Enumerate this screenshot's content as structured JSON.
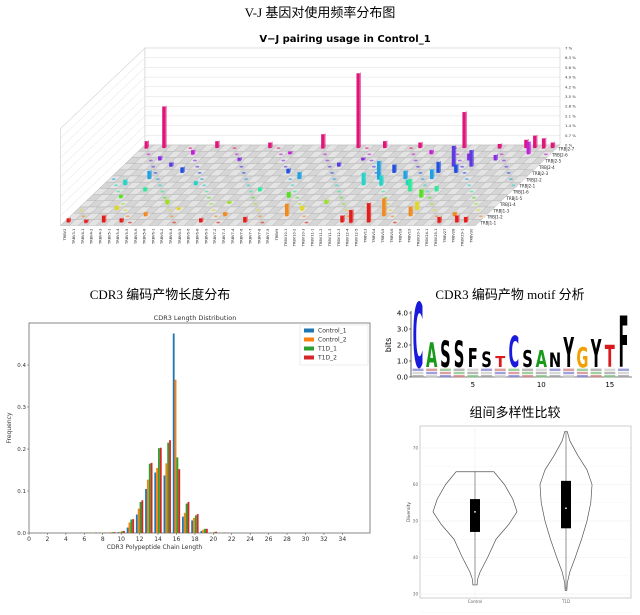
{
  "headings": {
    "vj": "V-J 基因对使用频率分布图",
    "length": "CDR3 编码产物长度分布",
    "motif": "CDR3 编码产物 motif 分析",
    "diversity": "组间多样性比较"
  },
  "chart_data": [
    {
      "type": "bar3d",
      "title": "V−J pairing usage in Control_1",
      "z_ticks": [
        "0 %",
        "0.7 %",
        "1.4 %",
        "2.1 %",
        "2.8 %",
        "3.5 %",
        "4.2 %",
        "4.9 %",
        "5.6 %",
        "6.3 %",
        "7 %"
      ],
      "zlim": [
        0,
        7
      ],
      "j_genes": [
        "TRBJ2-7",
        "TRBJ2-6",
        "TRBJ2-5",
        "TRBJ2-4",
        "TRBJ2-3",
        "TRBJ2-2",
        "TRBJ2-1",
        "TRBJ1-6",
        "TRBJ1-5",
        "TRBJ1-4",
        "TRBJ1-3",
        "TRBJ1-2",
        "TRBJ1-1"
      ],
      "v_genes": [
        "TRBV2",
        "TRBV3-1",
        "TRBV4-1",
        "TRBV4-2",
        "TRBV4-3",
        "TRBV5-1",
        "TRBV5-4",
        "TRBV5-5",
        "TRBV5-6",
        "TRBV5-8",
        "TRBV6-1",
        "TRBV6-2",
        "TRBV6-4",
        "TRBV6-5",
        "TRBV6-6",
        "TRBV6-8",
        "TRBV6-9",
        "TRBV7-2",
        "TRBV7-3",
        "TRBV7-4",
        "TRBV7-6",
        "TRBV7-7",
        "TRBV7-8",
        "TRBV7-9",
        "TRBV9",
        "TRBV10-1",
        "TRBV10-2",
        "TRBV10-3",
        "TRBV11-1",
        "TRBV11-2",
        "TRBV11-3",
        "TRBV12-3",
        "TRBV12-4",
        "TRBV12-5",
        "TRBV13",
        "TRBV14",
        "TRBV15",
        "TRBV16",
        "TRBV18",
        "TRBV19",
        "TRBV20-1",
        "TRBV24-1",
        "TRBV25-1",
        "TRBV27",
        "TRBV28",
        "TRBV29-1",
        "TRBV30"
      ],
      "row_colors": [
        "#e0157a",
        "#c21fd6",
        "#8a2be2",
        "#5b3be0",
        "#1f4fe0",
        "#1fa0e0",
        "#22d3c8",
        "#2ee89a",
        "#52e01f",
        "#9be01f",
        "#e0d81f",
        "#f08a1f",
        "#e51c1c"
      ],
      "bars": [
        [
          0,
          0,
          0.5
        ],
        [
          2,
          0,
          3.0
        ],
        [
          8,
          0,
          0.5
        ],
        [
          14,
          0,
          0.4
        ],
        [
          20,
          0,
          1.0
        ],
        [
          24,
          0,
          5.4
        ],
        [
          27,
          0,
          0.5
        ],
        [
          31,
          0,
          0.4
        ],
        [
          36,
          0,
          2.6
        ],
        [
          40,
          0,
          0.3
        ],
        [
          43,
          0,
          0.6
        ],
        [
          44,
          0,
          0.9
        ],
        [
          45,
          0,
          0.7
        ],
        [
          46,
          0,
          0.4
        ],
        [
          6,
          1,
          0.3
        ],
        [
          17,
          1,
          0.2
        ],
        [
          33,
          1,
          0.3
        ],
        [
          44,
          1,
          0.9
        ],
        [
          3,
          2,
          0.3
        ],
        [
          12,
          2,
          0.2
        ],
        [
          26,
          2,
          0.2
        ],
        [
          38,
          2,
          0.5
        ],
        [
          41,
          2,
          0.4
        ],
        [
          5,
          3,
          0.3
        ],
        [
          24,
          3,
          0.3
        ],
        [
          37,
          3,
          1.5
        ],
        [
          39,
          3,
          1.2
        ],
        [
          7,
          4,
          0.4
        ],
        [
          19,
          4,
          0.3
        ],
        [
          31,
          4,
          0.6
        ],
        [
          36,
          4,
          0.8
        ],
        [
          38,
          4,
          0.6
        ],
        [
          4,
          5,
          0.6
        ],
        [
          21,
          5,
          0.5
        ],
        [
          30,
          5,
          1.3
        ],
        [
          33,
          5,
          0.6
        ],
        [
          36,
          5,
          0.7
        ],
        [
          2,
          6,
          0.4
        ],
        [
          10,
          6,
          0.3
        ],
        [
          29,
          6,
          0.9
        ],
        [
          31,
          6,
          0.7
        ],
        [
          34,
          6,
          0.4
        ],
        [
          5,
          7,
          0.3
        ],
        [
          18,
          7,
          0.3
        ],
        [
          35,
          7,
          0.9
        ],
        [
          38,
          7,
          0.4
        ],
        [
          3,
          8,
          0.2
        ],
        [
          22,
          8,
          0.4
        ],
        [
          37,
          8,
          0.6
        ],
        [
          9,
          9,
          0.3
        ],
        [
          16,
          9,
          0.2
        ],
        [
          27,
          9,
          0.3
        ],
        [
          4,
          10,
          0.3
        ],
        [
          11,
          10,
          0.2
        ],
        [
          25,
          10,
          0.3
        ],
        [
          38,
          10,
          0.6
        ],
        [
          8,
          11,
          0.3
        ],
        [
          17,
          11,
          0.3
        ],
        [
          24,
          11,
          0.9
        ],
        [
          35,
          11,
          1.3
        ],
        [
          38,
          11,
          0.7
        ],
        [
          43,
          11,
          0.3
        ],
        [
          0,
          12,
          0.3
        ],
        [
          2,
          12,
          0.2
        ],
        [
          4,
          12,
          0.5
        ],
        [
          6,
          12,
          0.3
        ],
        [
          15,
          12,
          0.3
        ],
        [
          20,
          12,
          0.4
        ],
        [
          31,
          12,
          0.5
        ],
        [
          32,
          12,
          0.9
        ],
        [
          34,
          12,
          1.4
        ],
        [
          42,
          12,
          0.4
        ],
        [
          44,
          12,
          0.5
        ],
        [
          45,
          12,
          0.4
        ]
      ]
    },
    {
      "type": "bar",
      "title": "CDR3 Length Distribution",
      "xlabel": "CDR3 Polypeptide Chain Length",
      "ylabel": "Frequency",
      "xlim": [
        0,
        37
      ],
      "ylim": [
        0,
        0.5
      ],
      "x_ticks": [
        "0",
        "2",
        "4",
        "6",
        "8",
        "10",
        "12",
        "14",
        "16",
        "18",
        "20",
        "22",
        "24",
        "26",
        "28",
        "30",
        "32",
        "34"
      ],
      "y_ticks": [
        "0.0",
        "0.1",
        "0.2",
        "0.3",
        "0.4"
      ],
      "legend_position": "top-right",
      "categories": [
        6,
        7,
        8,
        9,
        10,
        11,
        12,
        13,
        14,
        15,
        16,
        17,
        18,
        19,
        20,
        21
      ],
      "series": [
        {
          "name": "Control_1",
          "color": "#1f77b4",
          "values": [
            0.0005,
            0.0008,
            0.001,
            0.001,
            0.002,
            0.013,
            0.044,
            0.105,
            0.144,
            0.137,
            0.475,
            0.039,
            0.03,
            0.005,
            0.001,
            0.0005
          ]
        },
        {
          "name": "Control_2",
          "color": "#ff7f0e",
          "values": [
            0.0005,
            0.0008,
            0.001,
            0.002,
            0.003,
            0.025,
            0.058,
            0.127,
            0.155,
            0.166,
            0.365,
            0.048,
            0.036,
            0.008,
            0.001,
            0.0005
          ]
        },
        {
          "name": "T1D_1",
          "color": "#2ca02c",
          "values": [
            0.0005,
            0.001,
            0.001,
            0.002,
            0.004,
            0.032,
            0.074,
            0.165,
            0.202,
            0.215,
            0.18,
            0.07,
            0.042,
            0.01,
            0.002,
            0.0008
          ]
        },
        {
          "name": "T1D_2",
          "color": "#d62728",
          "values": [
            0.0005,
            0.001,
            0.001,
            0.002,
            0.005,
            0.033,
            0.078,
            0.167,
            0.203,
            0.221,
            0.152,
            0.074,
            0.045,
            0.01,
            0.003,
            0.0008
          ]
        }
      ]
    },
    {
      "type": "sequence-logo",
      "ylabel": "bits",
      "ylim": [
        0,
        4.2
      ],
      "y_ticks": [
        "0.0",
        "1.0",
        "2.0",
        "3.0",
        "4.0"
      ],
      "x_ticks": [
        "5",
        "10",
        "15"
      ],
      "positions": [
        {
          "pos": 1,
          "letter": "C",
          "bits": 4.2,
          "color": "#1a1adb"
        },
        {
          "pos": 2,
          "letter": "A",
          "bits": 1.6,
          "color": "#1a9a1a"
        },
        {
          "pos": 3,
          "letter": "S",
          "bits": 1.7,
          "color": "#000000"
        },
        {
          "pos": 4,
          "letter": "S",
          "bits": 1.7,
          "color": "#000000"
        },
        {
          "pos": 5,
          "letter": "F",
          "bits": 1.2,
          "color": "#000000"
        },
        {
          "pos": 6,
          "letter": "S",
          "bits": 1.0,
          "color": "#000000"
        },
        {
          "pos": 7,
          "letter": "T",
          "bits": 0.7,
          "color": "#d81a1a"
        },
        {
          "pos": 8,
          "letter": "C",
          "bits": 2.0,
          "color": "#1a1adb"
        },
        {
          "pos": 9,
          "letter": "S",
          "bits": 1.1,
          "color": "#000000"
        },
        {
          "pos": 10,
          "letter": "A",
          "bits": 1.1,
          "color": "#1a9a1a"
        },
        {
          "pos": 11,
          "letter": "N",
          "bits": 0.9,
          "color": "#000000"
        },
        {
          "pos": 12,
          "letter": "Y",
          "bits": 1.9,
          "color": "#000000"
        },
        {
          "pos": 13,
          "letter": "G",
          "bits": 1.3,
          "color": "#f0a000"
        },
        {
          "pos": 14,
          "letter": "Y",
          "bits": 1.8,
          "color": "#000000"
        },
        {
          "pos": 15,
          "letter": "T",
          "bits": 1.4,
          "color": "#d81a1a"
        },
        {
          "pos": 16,
          "letter": "F",
          "bits": 3.3,
          "color": "#000000"
        }
      ]
    },
    {
      "type": "violin",
      "ylabel": "Diversity",
      "ylim": [
        29,
        76
      ],
      "y_ticks": [
        "30",
        "40",
        "50",
        "60",
        "70"
      ],
      "categories": [
        "Control",
        "T1D"
      ],
      "groups": [
        {
          "name": "Control",
          "q1": 47,
          "median": 52.5,
          "q3": 56,
          "min": 32.5,
          "max": 63.5,
          "density": [
            [
              32.5,
              0.05
            ],
            [
              34,
              0.06
            ],
            [
              36,
              0.12
            ],
            [
              40,
              0.3
            ],
            [
              45,
              0.5
            ],
            [
              49,
              0.8
            ],
            [
              52.5,
              1.0
            ],
            [
              56,
              0.9
            ],
            [
              60,
              0.7
            ],
            [
              63.5,
              0.45
            ]
          ]
        },
        {
          "name": "T1D",
          "q1": 48,
          "median": 53.5,
          "q3": 61,
          "min": 31,
          "max": 74.5,
          "density": [
            [
              31,
              0.02
            ],
            [
              33,
              0.03
            ],
            [
              36,
              0.09
            ],
            [
              40,
              0.22
            ],
            [
              45,
              0.37
            ],
            [
              50,
              0.5
            ],
            [
              55,
              0.59
            ],
            [
              60,
              0.62
            ],
            [
              64,
              0.5
            ],
            [
              68,
              0.28
            ],
            [
              72,
              0.09
            ],
            [
              74.5,
              0.03
            ]
          ]
        }
      ]
    }
  ]
}
